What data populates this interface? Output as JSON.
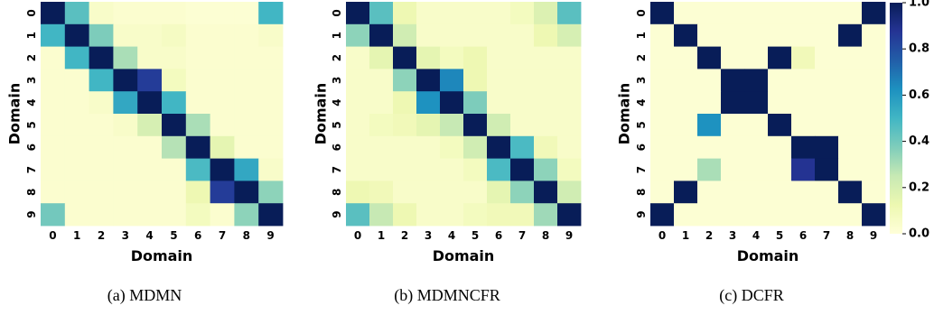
{
  "chart_data": [
    {
      "type": "heatmap",
      "caption": "(a) MDMN",
      "xlabel": "Domain",
      "ylabel": "Domain",
      "x_ticks": [
        "0",
        "1",
        "2",
        "3",
        "4",
        "5",
        "6",
        "7",
        "8",
        "9"
      ],
      "y_ticks": [
        "0",
        "1",
        "2",
        "3",
        "4",
        "5",
        "6",
        "7",
        "8",
        "9"
      ],
      "vlim": [
        0,
        1
      ],
      "values": [
        [
          1.0,
          0.45,
          0.05,
          0.03,
          0.03,
          0.03,
          0.02,
          0.02,
          0.02,
          0.5
        ],
        [
          0.5,
          1.0,
          0.38,
          0.05,
          0.05,
          0.07,
          0.03,
          0.03,
          0.03,
          0.05
        ],
        [
          0.03,
          0.5,
          1.0,
          0.3,
          0.05,
          0.05,
          0.03,
          0.03,
          0.03,
          0.03
        ],
        [
          0.03,
          0.03,
          0.5,
          1.0,
          0.85,
          0.08,
          0.03,
          0.03,
          0.03,
          0.03
        ],
        [
          0.03,
          0.03,
          0.05,
          0.55,
          1.0,
          0.5,
          0.03,
          0.03,
          0.03,
          0.03
        ],
        [
          0.03,
          0.03,
          0.03,
          0.05,
          0.2,
          1.0,
          0.3,
          0.03,
          0.03,
          0.03
        ],
        [
          0.03,
          0.03,
          0.03,
          0.03,
          0.03,
          0.28,
          1.0,
          0.15,
          0.03,
          0.03
        ],
        [
          0.03,
          0.03,
          0.03,
          0.03,
          0.03,
          0.03,
          0.48,
          1.0,
          0.55,
          0.05
        ],
        [
          0.03,
          0.03,
          0.03,
          0.03,
          0.03,
          0.03,
          0.12,
          0.85,
          1.0,
          0.35
        ],
        [
          0.4,
          0.03,
          0.03,
          0.03,
          0.03,
          0.03,
          0.08,
          0.03,
          0.35,
          1.0
        ]
      ]
    },
    {
      "type": "heatmap",
      "caption": "(b) MDMNCFR",
      "xlabel": "Domain",
      "ylabel": "Domain",
      "x_ticks": [
        "0",
        "1",
        "2",
        "3",
        "4",
        "5",
        "6",
        "7",
        "8",
        "9"
      ],
      "y_ticks": [
        "0",
        "1",
        "2",
        "3",
        "4",
        "5",
        "6",
        "7",
        "8",
        "9"
      ],
      "vlim": [
        0,
        1
      ],
      "values": [
        [
          1.0,
          0.45,
          0.12,
          0.05,
          0.05,
          0.05,
          0.05,
          0.08,
          0.18,
          0.45
        ],
        [
          0.35,
          1.0,
          0.22,
          0.05,
          0.05,
          0.05,
          0.05,
          0.05,
          0.12,
          0.2
        ],
        [
          0.05,
          0.15,
          1.0,
          0.15,
          0.08,
          0.12,
          0.05,
          0.05,
          0.05,
          0.05
        ],
        [
          0.05,
          0.05,
          0.35,
          1.0,
          0.65,
          0.12,
          0.05,
          0.05,
          0.05,
          0.05
        ],
        [
          0.05,
          0.05,
          0.12,
          0.62,
          1.0,
          0.38,
          0.05,
          0.05,
          0.05,
          0.05
        ],
        [
          0.05,
          0.08,
          0.1,
          0.15,
          0.25,
          1.0,
          0.22,
          0.05,
          0.05,
          0.05
        ],
        [
          0.05,
          0.05,
          0.05,
          0.05,
          0.08,
          0.22,
          1.0,
          0.48,
          0.1,
          0.05
        ],
        [
          0.05,
          0.05,
          0.05,
          0.05,
          0.05,
          0.08,
          0.48,
          1.0,
          0.35,
          0.08
        ],
        [
          0.12,
          0.1,
          0.05,
          0.05,
          0.05,
          0.05,
          0.15,
          0.35,
          1.0,
          0.22
        ],
        [
          0.45,
          0.25,
          0.12,
          0.05,
          0.05,
          0.08,
          0.1,
          0.1,
          0.32,
          1.0
        ]
      ]
    },
    {
      "type": "heatmap",
      "caption": "(c) DCFR",
      "xlabel": "Domain",
      "ylabel": "Domain",
      "x_ticks": [
        "0",
        "1",
        "2",
        "3",
        "4",
        "5",
        "6",
        "7",
        "8",
        "9"
      ],
      "y_ticks": [
        "0",
        "1",
        "2",
        "3",
        "4",
        "5",
        "6",
        "7",
        "8",
        "9"
      ],
      "vlim": [
        0,
        1
      ],
      "colorbar_ticks": [
        "0.0",
        "0.2",
        "0.4",
        "0.6",
        "0.8",
        "1.0"
      ],
      "values": [
        [
          1.0,
          0.02,
          0.02,
          0.02,
          0.02,
          0.02,
          0.02,
          0.02,
          0.02,
          1.0
        ],
        [
          0.02,
          1.0,
          0.02,
          0.02,
          0.02,
          0.02,
          0.02,
          0.02,
          1.0,
          0.02
        ],
        [
          0.02,
          0.02,
          1.0,
          0.02,
          0.02,
          1.0,
          0.1,
          0.02,
          0.02,
          0.02
        ],
        [
          0.02,
          0.02,
          0.02,
          1.0,
          1.0,
          0.02,
          0.02,
          0.02,
          0.02,
          0.02
        ],
        [
          0.02,
          0.02,
          0.02,
          1.0,
          1.0,
          0.02,
          0.02,
          0.02,
          0.02,
          0.02
        ],
        [
          0.02,
          0.02,
          0.62,
          0.02,
          0.02,
          1.0,
          0.02,
          0.02,
          0.02,
          0.02
        ],
        [
          0.02,
          0.02,
          0.02,
          0.02,
          0.02,
          0.02,
          1.0,
          1.0,
          0.02,
          0.02
        ],
        [
          0.02,
          0.02,
          0.3,
          0.02,
          0.02,
          0.02,
          0.88,
          1.0,
          0.02,
          0.02
        ],
        [
          0.02,
          1.0,
          0.02,
          0.02,
          0.02,
          0.02,
          0.02,
          0.02,
          1.0,
          0.02
        ],
        [
          1.0,
          0.02,
          0.02,
          0.02,
          0.02,
          0.02,
          0.02,
          0.02,
          0.02,
          1.0
        ]
      ]
    }
  ],
  "colors": {
    "colormap": [
      "#ffffd9",
      "#edf8b1",
      "#c7e9b4",
      "#7fcdbb",
      "#41b6c4",
      "#1d91c0",
      "#225ea8",
      "#253494",
      "#081d58"
    ]
  }
}
